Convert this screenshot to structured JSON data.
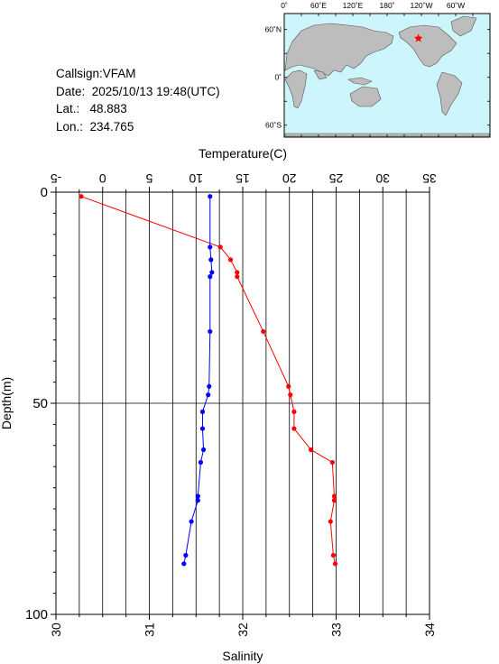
{
  "info": {
    "callsign": "Callsign:VFAM",
    "date": "Date:  2025/10/13 19:48(UTC)",
    "lat": "Lat.:   48.883",
    "lon": "Lon.:  234.765"
  },
  "map": {
    "top_labels": [
      "0˚",
      "60˚E",
      "120˚E",
      "180˚",
      "120˚W",
      "60˚W"
    ],
    "left_labels": [
      "60˚N",
      "0˚",
      "60˚S"
    ],
    "ocean_color": "#ccf6fc",
    "land_color": "#bdbdbd",
    "marker_color": "#ff0000",
    "marker_lat": 48.883,
    "marker_lon": 234.765
  },
  "chart_data": {
    "type": "line",
    "temperature_axis": {
      "title": "Temperature(C)",
      "range": [
        -5,
        35
      ],
      "ticks": [
        "-5",
        "0",
        "5",
        "10",
        "15",
        "20",
        "25",
        "30",
        "35"
      ]
    },
    "salinity_axis": {
      "title": "Salinity",
      "range": [
        30,
        34
      ],
      "ticks": [
        "30",
        "31",
        "32",
        "33",
        "34"
      ]
    },
    "depth_axis": {
      "title": "Depth(m)",
      "range": [
        0,
        100
      ],
      "ticks": [
        "0",
        "50",
        "100"
      ]
    },
    "grid": true,
    "series": [
      {
        "color": "#ff0000",
        "axis": "temperature",
        "points": [
          [
            -2.3,
            1
          ],
          [
            12.6,
            13
          ],
          [
            13.7,
            16
          ],
          [
            14.4,
            19
          ],
          [
            14.4,
            20
          ],
          [
            17.2,
            33
          ],
          [
            19.9,
            46
          ],
          [
            20.1,
            48
          ],
          [
            20.5,
            52
          ],
          [
            20.5,
            56
          ],
          [
            22.3,
            61
          ],
          [
            24.6,
            64
          ],
          [
            24.8,
            72
          ],
          [
            24.8,
            73
          ],
          [
            24.4,
            78
          ],
          [
            24.7,
            86
          ],
          [
            24.9,
            88
          ]
        ]
      },
      {
        "color": "#0000ff",
        "axis": "salinity",
        "points": [
          [
            31.65,
            1
          ],
          [
            31.65,
            13
          ],
          [
            31.66,
            16
          ],
          [
            31.67,
            19
          ],
          [
            31.65,
            20
          ],
          [
            31.65,
            33
          ],
          [
            31.64,
            46
          ],
          [
            31.63,
            48
          ],
          [
            31.57,
            52
          ],
          [
            31.57,
            56
          ],
          [
            31.58,
            61
          ],
          [
            31.55,
            64
          ],
          [
            31.52,
            72
          ],
          [
            31.52,
            73
          ],
          [
            31.45,
            78
          ],
          [
            31.39,
            86
          ],
          [
            31.37,
            88
          ]
        ]
      }
    ]
  }
}
